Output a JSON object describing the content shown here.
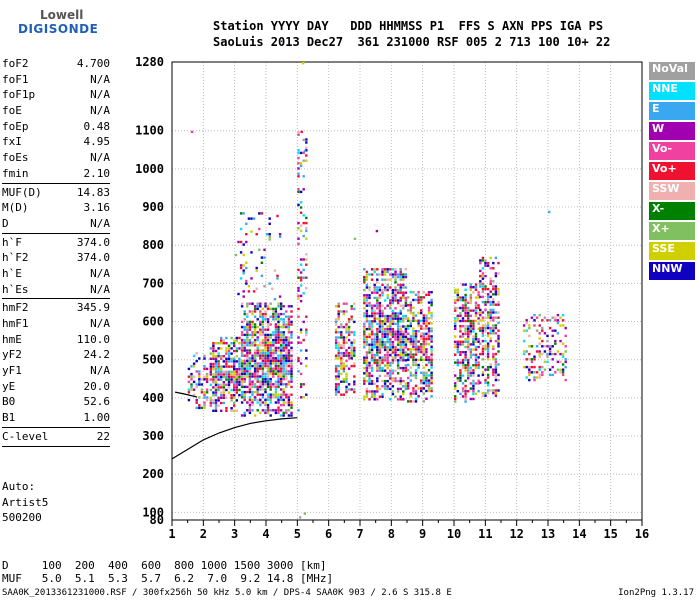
{
  "logo": {
    "line1": "Lowell",
    "line2": "DIGISONDE"
  },
  "header": {
    "line1": "Station YYYY DAY   DDD HHMMSS P1  FFS S AXN PPS IGA PS",
    "line2": "SaoLuis 2013 Dec27  361 231000 RSF 005 2 713 100 10+ 22"
  },
  "params": {
    "group1": [
      {
        "label": "foF2",
        "value": "4.700"
      },
      {
        "label": "foF1",
        "value": "N/A"
      },
      {
        "label": "foF1p",
        "value": "N/A"
      },
      {
        "label": "foE",
        "value": "N/A"
      },
      {
        "label": "foEp",
        "value": "0.48"
      },
      {
        "label": "fxI",
        "value": "4.95"
      },
      {
        "label": "foEs",
        "value": "N/A"
      },
      {
        "label": "fmin",
        "value": "2.10"
      }
    ],
    "group2": [
      {
        "label": "MUF(D)",
        "value": "14.83"
      },
      {
        "label": "M(D)",
        "value": "3.16"
      },
      {
        "label": "D",
        "value": "N/A"
      }
    ],
    "group3": [
      {
        "label": "h`F",
        "value": "374.0"
      },
      {
        "label": "h`F2",
        "value": "374.0"
      },
      {
        "label": "h`E",
        "value": "N/A"
      },
      {
        "label": "h`Es",
        "value": "N/A"
      }
    ],
    "group4": [
      {
        "label": "hmF2",
        "value": "345.9"
      },
      {
        "label": "hmF1",
        "value": "N/A"
      },
      {
        "label": "hmE",
        "value": "110.0"
      },
      {
        "label": "yF2",
        "value": "24.2"
      },
      {
        "label": "yF1",
        "value": "N/A"
      },
      {
        "label": "yE",
        "value": "20.0"
      },
      {
        "label": "B0",
        "value": "52.6"
      },
      {
        "label": "B1",
        "value": "1.00"
      }
    ],
    "group5": [
      {
        "label": "C-level",
        "value": "22"
      }
    ]
  },
  "auto": {
    "line1": "Auto:",
    "line2": "Artist5",
    "line3": "500200"
  },
  "legend": [
    {
      "label": "NoVal",
      "color": "#a0a0a0"
    },
    {
      "label": "NNE",
      "color": "#00e0ff"
    },
    {
      "label": "E",
      "color": "#3aa8f0"
    },
    {
      "label": "W",
      "color": "#a000b0"
    },
    {
      "label": "Vo-",
      "color": "#f040a0"
    },
    {
      "label": "Vo+",
      "color": "#f01030"
    },
    {
      "label": "SSW",
      "color": "#f0b0b0"
    },
    {
      "label": "X-",
      "color": "#008000"
    },
    {
      "label": "X+",
      "color": "#80c060"
    },
    {
      "label": "SSE",
      "color": "#d0d000"
    },
    {
      "label": "NNW",
      "color": "#1000c0"
    }
  ],
  "bottom": {
    "line1": "D     100  200  400  600  800 1000 1500 3000 [km]",
    "line2": "MUF   5.0  5.1  5.3  5.7  6.2  7.0  9.2 14.8 [MHz]"
  },
  "footer": "SAA0K_2013361231000.RSF / 300fx256h 50 kHz 5.0 km / DPS-4 SAA0K 903 / 2.6 S 315.8 E",
  "version": "Ion2Png 1.3.17",
  "chart_data": {
    "type": "scatter",
    "x_ticks": [
      1,
      2,
      3,
      4,
      5,
      6,
      7,
      8,
      9,
      10,
      11,
      12,
      13,
      14,
      15,
      16
    ],
    "y_ticks": [
      80,
      100,
      200,
      300,
      400,
      500,
      600,
      700,
      800,
      900,
      1000,
      1100,
      1280
    ],
    "xlim": [
      1,
      16
    ],
    "ylim": [
      80,
      1280
    ],
    "grid": true,
    "clusters": [
      {
        "x": [
          1.5,
          2.2
        ],
        "y": [
          370,
          520
        ],
        "density": 0.45
      },
      {
        "x": [
          2.2,
          3.2
        ],
        "y": [
          360,
          560
        ],
        "density": 0.85
      },
      {
        "x": [
          3.2,
          4.9
        ],
        "y": [
          350,
          650
        ],
        "density": 0.95
      },
      {
        "x": [
          3.0,
          4.5
        ],
        "y": [
          650,
          900
        ],
        "density": 0.12
      },
      {
        "x": [
          5.0,
          5.3
        ],
        "y": [
          360,
          1120
        ],
        "density": 0.25
      },
      {
        "x": [
          6.2,
          6.9
        ],
        "y": [
          400,
          650
        ],
        "density": 0.7
      },
      {
        "x": [
          7.1,
          8.5
        ],
        "y": [
          390,
          740
        ],
        "density": 0.85
      },
      {
        "x": [
          8.5,
          9.3
        ],
        "y": [
          390,
          680
        ],
        "density": 0.75
      },
      {
        "x": [
          10.0,
          10.8
        ],
        "y": [
          390,
          700
        ],
        "density": 0.7
      },
      {
        "x": [
          10.8,
          11.5
        ],
        "y": [
          400,
          770
        ],
        "density": 0.6
      },
      {
        "x": [
          12.2,
          13.6
        ],
        "y": [
          440,
          620
        ],
        "density": 0.4
      }
    ],
    "trace": {
      "x": [
        1.0,
        1.5,
        2.0,
        2.5,
        3.0,
        3.5,
        4.0,
        4.5,
        5.0
      ],
      "y": [
        240,
        265,
        290,
        308,
        322,
        333,
        340,
        345,
        348
      ]
    },
    "trace2": {
      "x": [
        1.1,
        1.4,
        1.8
      ],
      "y": [
        415,
        410,
        402
      ]
    }
  }
}
